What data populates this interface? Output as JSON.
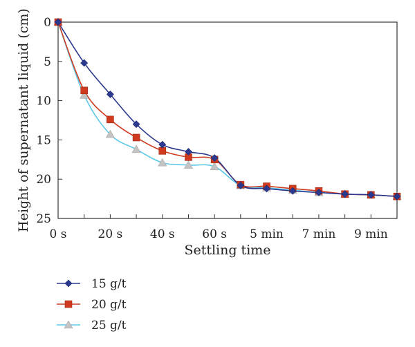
{
  "chart_data": {
    "type": "line",
    "xlabel": "Settling time",
    "ylabel": "Height of supernatant liquid (cm)",
    "ylim": [
      0,
      25
    ],
    "y_inverted": true,
    "y_ticks": [
      "0",
      "5",
      "10",
      "15",
      "20",
      "25"
    ],
    "x_ticks": [
      "0 s",
      "20 s",
      "40 s",
      "60 s",
      "5 min",
      "7 min",
      "9 min"
    ],
    "x": [
      "0 s",
      "10 s",
      "20 s",
      "30 s",
      "40 s",
      "50 s",
      "60 s",
      "4 min",
      "5 min",
      "6 min",
      "7 min",
      "8 min",
      "9 min",
      "10 min"
    ],
    "grid": false,
    "legend_position": "bottom-left",
    "series": [
      {
        "name": "15 g/t",
        "color": "#2b3a8f",
        "marker": "diamond",
        "values": [
          0,
          5.2,
          9.2,
          13.0,
          15.6,
          16.5,
          17.3,
          20.8,
          21.2,
          21.5,
          21.7,
          21.9,
          22.0,
          22.2
        ]
      },
      {
        "name": "20 g/t",
        "color": "#d03a1f",
        "marker": "square",
        "values": [
          0,
          8.7,
          12.4,
          14.7,
          16.4,
          17.2,
          17.5,
          20.7,
          20.9,
          21.2,
          21.5,
          21.9,
          22.0,
          22.2
        ]
      },
      {
        "name": "25 g/t",
        "color": "#5bc8e8",
        "marker": "triangle",
        "values": [
          0,
          9.3,
          14.3,
          16.2,
          17.9,
          18.2,
          18.4,
          20.8,
          21.1,
          21.4,
          21.7,
          21.9,
          22.0,
          22.2
        ]
      }
    ]
  }
}
